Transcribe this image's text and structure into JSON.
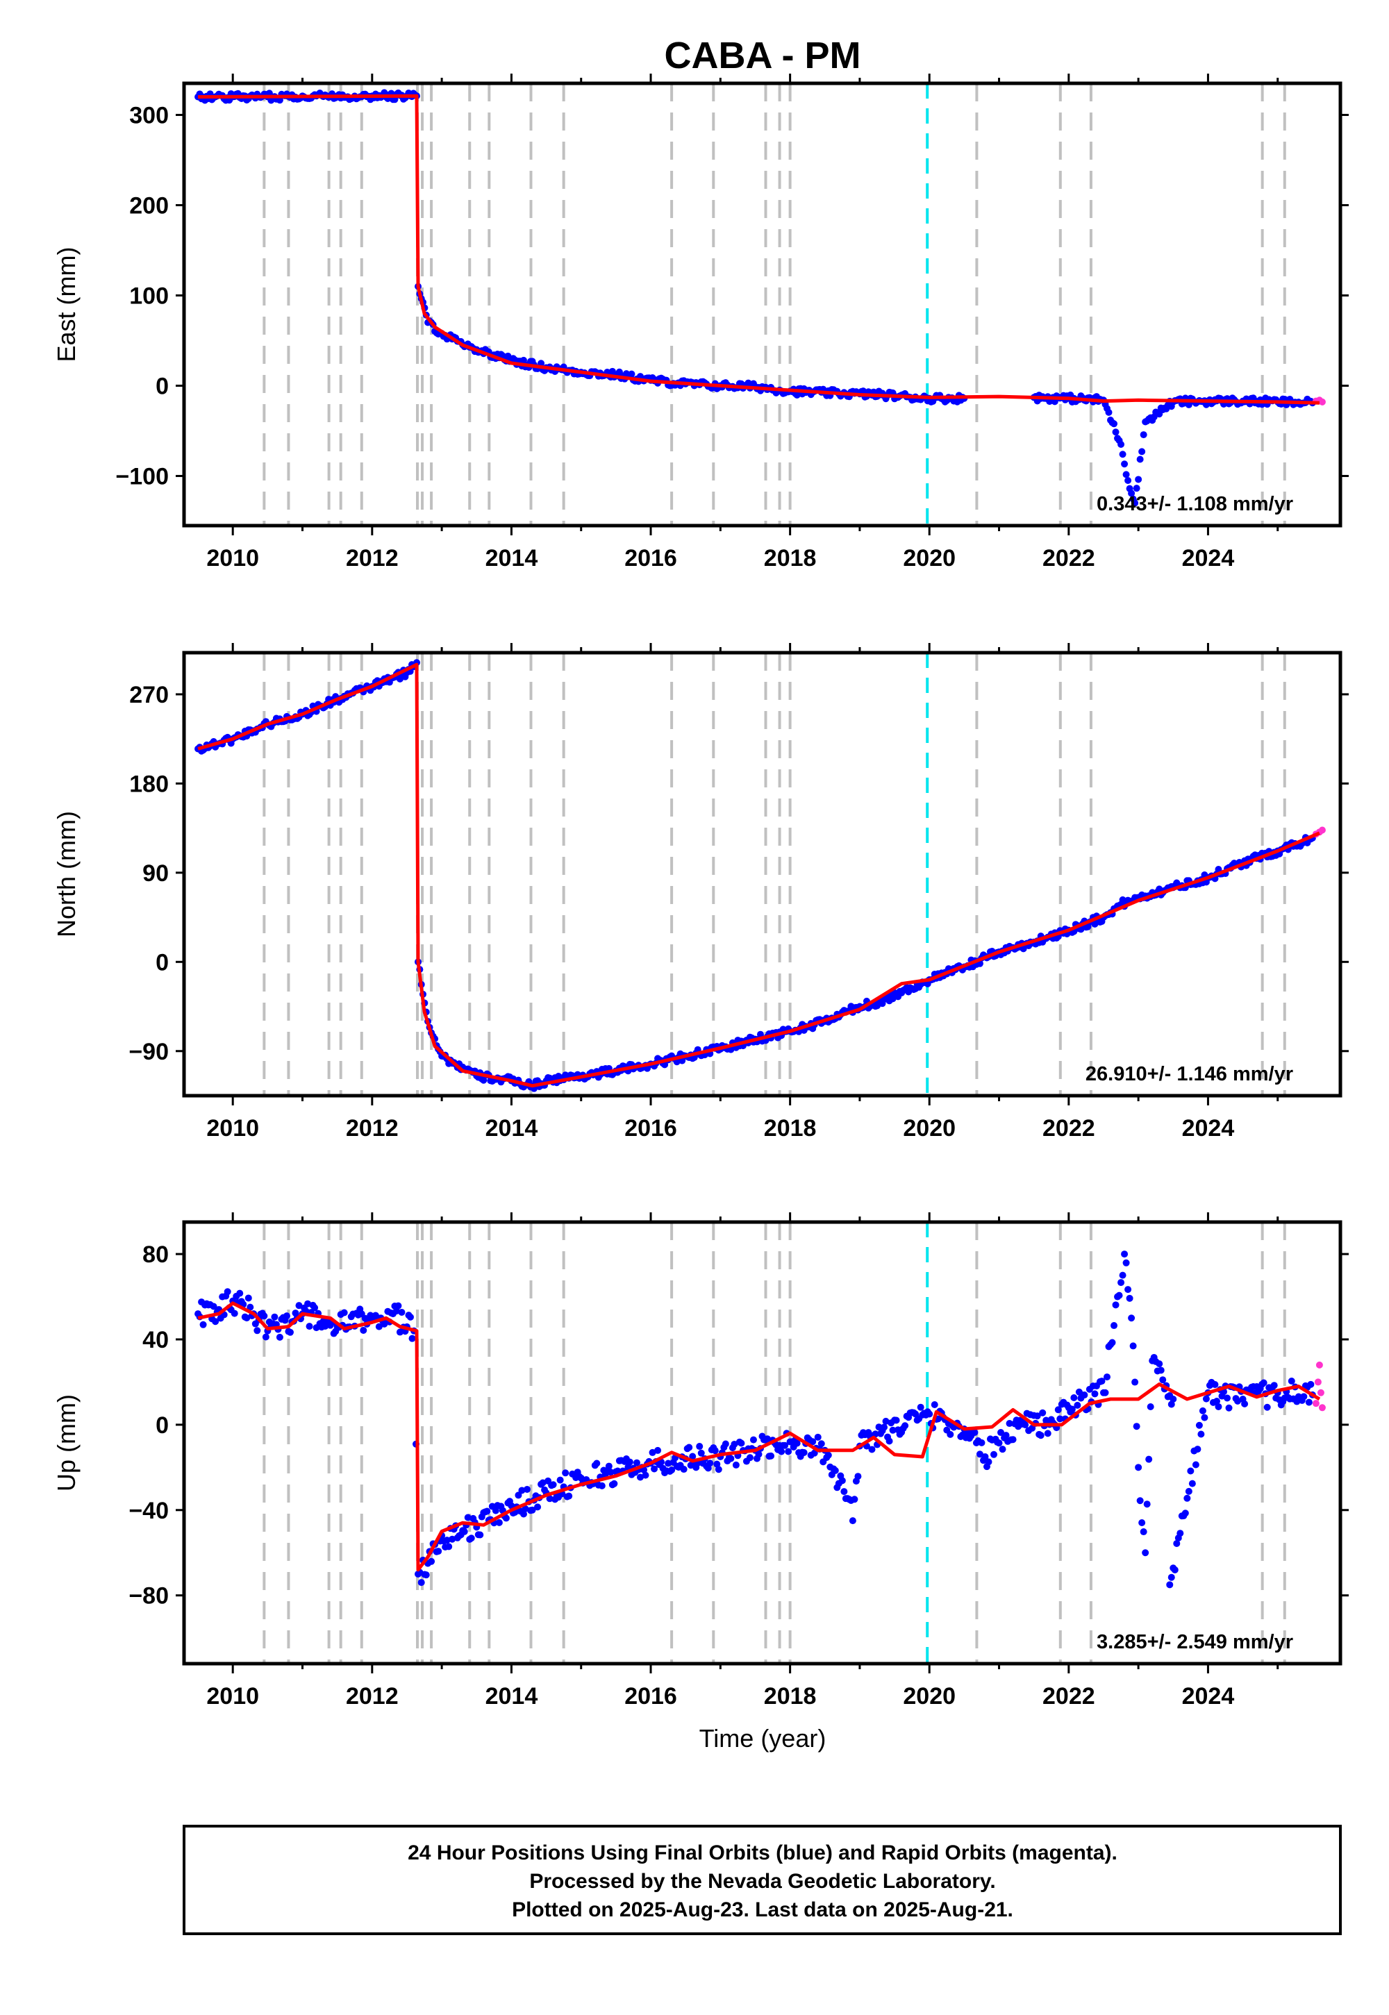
{
  "figure": {
    "title": "CABA - PM",
    "xlabel": "Time (year)",
    "footer": [
      "24 Hour Positions Using Final Orbits (blue) and Rapid Orbits (magenta).",
      "Processed by the Nevada Geodetic Laboratory.",
      "Plotted on 2025-Aug-23. Last data on 2025-Aug-21."
    ],
    "colors": {
      "final_orbits": "#0000ff",
      "rapid_orbits": "#ff33cc",
      "model_fit": "#ff0000",
      "event_lines": "#c0c0c0",
      "reference_line": "#00e5ee",
      "frame": "#000000"
    }
  },
  "chart_data": [
    {
      "type": "scatter",
      "title": "CABA - PM",
      "ylabel": "East (mm)",
      "xlim": [
        2009.3,
        2025.9
      ],
      "ylim": [
        -155,
        335
      ],
      "x_ticks": [
        2010,
        2012,
        2014,
        2016,
        2018,
        2020,
        2022,
        2024
      ],
      "y_ticks": [
        -100,
        0,
        100,
        200,
        300
      ],
      "y_tick_labels": [
        "−100",
        "0",
        "100",
        "200",
        "300"
      ],
      "rate": "0.343+/- 1.108 mm/yr",
      "event_lines": [
        2010.45,
        2010.8,
        2011.38,
        2011.55,
        2011.85,
        2012.65,
        2012.72,
        2012.85,
        2013.4,
        2013.68,
        2014.28,
        2014.75,
        2016.3,
        2016.9,
        2017.65,
        2017.85,
        2018.0,
        2020.68,
        2021.88,
        2022.32,
        2024.78,
        2025.1
      ],
      "reference_line": 2019.97,
      "series": [
        {
          "name": "Final Orbits",
          "data": [
            [
              2009.5,
              320
            ],
            [
              2010.0,
              320
            ],
            [
              2010.5,
              320
            ],
            [
              2011.0,
              321
            ],
            [
              2011.5,
              321
            ],
            [
              2012.0,
              321
            ],
            [
              2012.5,
              321
            ],
            [
              2012.64,
              321
            ],
            [
              2012.66,
              110
            ],
            [
              2012.8,
              70
            ],
            [
              2013.0,
              58
            ],
            [
              2013.5,
              40
            ],
            [
              2014.0,
              28
            ],
            [
              2014.5,
              20
            ],
            [
              2015.0,
              15
            ],
            [
              2015.5,
              12
            ],
            [
              2016.0,
              6
            ],
            [
              2016.5,
              2
            ],
            [
              2017.0,
              0
            ],
            [
              2017.5,
              -1
            ],
            [
              2018.0,
              -6
            ],
            [
              2018.5,
              -8
            ],
            [
              2019.0,
              -9
            ],
            [
              2019.3,
              -10
            ],
            [
              2020.0,
              -14
            ],
            [
              2020.5,
              -14
            ],
            [
              2021.5,
              -13
            ],
            [
              2022.0,
              -14
            ],
            [
              2022.5,
              -16
            ],
            [
              2022.75,
              -65
            ],
            [
              2022.85,
              -105
            ],
            [
              2022.95,
              -130
            ],
            [
              2023.1,
              -40
            ],
            [
              2023.5,
              -18
            ],
            [
              2024.0,
              -17
            ],
            [
              2024.5,
              -17
            ],
            [
              2025.0,
              -18
            ],
            [
              2025.5,
              -19
            ]
          ]
        },
        {
          "name": "Rapid Orbits",
          "data": [
            [
              2025.55,
              -17
            ],
            [
              2025.6,
              -16
            ],
            [
              2025.64,
              -18
            ]
          ]
        }
      ],
      "model": [
        [
          2009.5,
          320
        ],
        [
          2012.64,
          321
        ],
        [
          2012.66,
          110
        ],
        [
          2012.75,
          80
        ],
        [
          2012.9,
          65
        ],
        [
          2013.3,
          45
        ],
        [
          2014.0,
          25
        ],
        [
          2015.0,
          15
        ],
        [
          2016.0,
          5
        ],
        [
          2017.0,
          0
        ],
        [
          2018.0,
          -5
        ],
        [
          2019.0,
          -10
        ],
        [
          2020.0,
          -13
        ],
        [
          2021.0,
          -12
        ],
        [
          2022.0,
          -14
        ],
        [
          2022.5,
          -17
        ],
        [
          2023.0,
          -16
        ],
        [
          2024.0,
          -17
        ],
        [
          2025.0,
          -18
        ],
        [
          2025.6,
          -19
        ]
      ]
    },
    {
      "type": "scatter",
      "ylabel": "North (mm)",
      "xlim": [
        2009.3,
        2025.9
      ],
      "ylim": [
        -135,
        312
      ],
      "x_ticks": [
        2010,
        2012,
        2014,
        2016,
        2018,
        2020,
        2022,
        2024
      ],
      "y_ticks": [
        -90,
        0,
        90,
        180,
        270
      ],
      "y_tick_labels": [
        "−90",
        "0",
        "90",
        "180",
        "270"
      ],
      "rate": "26.910+/- 1.146 mm/yr",
      "event_lines": [
        2010.45,
        2010.8,
        2011.38,
        2011.55,
        2011.85,
        2012.65,
        2012.72,
        2012.85,
        2013.4,
        2013.68,
        2014.28,
        2014.75,
        2016.3,
        2016.9,
        2017.65,
        2017.85,
        2018.0,
        2020.68,
        2021.88,
        2022.32,
        2024.78,
        2025.1
      ],
      "reference_line": 2019.97,
      "series": [
        {
          "name": "Final Orbits",
          "data": [
            [
              2009.5,
              215
            ],
            [
              2010.0,
              225
            ],
            [
              2010.5,
              240
            ],
            [
              2011.0,
              250
            ],
            [
              2011.5,
              265
            ],
            [
              2012.0,
              278
            ],
            [
              2012.5,
              292
            ],
            [
              2012.64,
              302
            ],
            [
              2012.66,
              0
            ],
            [
              2012.8,
              -60
            ],
            [
              2013.0,
              -95
            ],
            [
              2013.5,
              -115
            ],
            [
              2014.0,
              -120
            ],
            [
              2014.3,
              -125
            ],
            [
              2014.5,
              -120
            ],
            [
              2015.0,
              -115
            ],
            [
              2015.5,
              -110
            ],
            [
              2016.0,
              -103
            ],
            [
              2016.5,
              -95
            ],
            [
              2017.0,
              -88
            ],
            [
              2017.5,
              -78
            ],
            [
              2018.0,
              -70
            ],
            [
              2018.5,
              -60
            ],
            [
              2019.0,
              -45
            ],
            [
              2019.3,
              -40
            ],
            [
              2020.0,
              -18
            ],
            [
              2020.5,
              -5
            ],
            [
              2021.0,
              10
            ],
            [
              2021.5,
              20
            ],
            [
              2022.0,
              32
            ],
            [
              2022.5,
              45
            ],
            [
              2022.75,
              58
            ],
            [
              2023.0,
              65
            ],
            [
              2023.5,
              75
            ],
            [
              2024.0,
              85
            ],
            [
              2024.5,
              100
            ],
            [
              2025.0,
              112
            ],
            [
              2025.5,
              125
            ]
          ]
        },
        {
          "name": "Rapid Orbits",
          "data": [
            [
              2025.55,
              129
            ],
            [
              2025.6,
              131
            ],
            [
              2025.64,
              133
            ]
          ]
        }
      ],
      "model": [
        [
          2009.5,
          215
        ],
        [
          2010.0,
          225
        ],
        [
          2010.5,
          240
        ],
        [
          2011.0,
          250
        ],
        [
          2011.5,
          265
        ],
        [
          2012.0,
          278
        ],
        [
          2012.64,
          300
        ],
        [
          2012.66,
          0
        ],
        [
          2012.75,
          -50
        ],
        [
          2012.9,
          -85
        ],
        [
          2013.3,
          -110
        ],
        [
          2014.0,
          -120
        ],
        [
          2014.3,
          -125
        ],
        [
          2015.0,
          -116
        ],
        [
          2016.0,
          -103
        ],
        [
          2017.0,
          -87
        ],
        [
          2018.0,
          -70
        ],
        [
          2019.0,
          -48
        ],
        [
          2019.6,
          -22
        ],
        [
          2020.0,
          -18
        ],
        [
          2021.0,
          10
        ],
        [
          2022.0,
          32
        ],
        [
          2023.0,
          62
        ],
        [
          2024.0,
          85
        ],
        [
          2025.0,
          112
        ],
        [
          2025.6,
          130
        ]
      ]
    },
    {
      "type": "scatter",
      "ylabel": "Up (mm)",
      "xlim": [
        2009.3,
        2025.9
      ],
      "ylim": [
        -112,
        95
      ],
      "x_ticks": [
        2010,
        2012,
        2014,
        2016,
        2018,
        2020,
        2022,
        2024
      ],
      "y_ticks": [
        -80,
        -40,
        0,
        40,
        80
      ],
      "y_tick_labels": [
        "−80",
        "−40",
        "0",
        "40",
        "80"
      ],
      "xlabel": "Time (year)",
      "rate": "3.285+/- 2.549 mm/yr",
      "event_lines": [
        2010.45,
        2010.8,
        2011.38,
        2011.55,
        2011.85,
        2012.65,
        2012.72,
        2012.85,
        2013.4,
        2013.68,
        2014.28,
        2014.75,
        2016.3,
        2016.9,
        2017.65,
        2017.85,
        2018.0,
        2020.68,
        2021.88,
        2022.32,
        2024.78,
        2025.1
      ],
      "reference_line": 2019.97,
      "series": [
        {
          "name": "Final Orbits",
          "data": [
            [
              2009.5,
              52
            ],
            [
              2009.8,
              54
            ],
            [
              2010.0,
              58
            ],
            [
              2010.3,
              52
            ],
            [
              2010.5,
              44
            ],
            [
              2011.0,
              52
            ],
            [
              2011.5,
              46
            ],
            [
              2012.0,
              50
            ],
            [
              2012.3,
              52
            ],
            [
              2012.6,
              44
            ],
            [
              2012.66,
              -70
            ],
            [
              2012.8,
              -65
            ],
            [
              2013.0,
              -52
            ],
            [
              2013.5,
              -48
            ],
            [
              2014.0,
              -38
            ],
            [
              2014.5,
              -32
            ],
            [
              2015.0,
              -25
            ],
            [
              2015.5,
              -22
            ],
            [
              2016.0,
              -18
            ],
            [
              2016.5,
              -16
            ],
            [
              2017.0,
              -15
            ],
            [
              2017.5,
              -12
            ],
            [
              2018.0,
              -8
            ],
            [
              2018.5,
              -12
            ],
            [
              2018.85,
              -35
            ],
            [
              2018.9,
              -45
            ],
            [
              2019.0,
              -10
            ],
            [
              2019.2,
              -5
            ],
            [
              2020.0,
              5
            ],
            [
              2020.5,
              -2
            ],
            [
              2020.8,
              -15
            ],
            [
              2021.3,
              2
            ],
            [
              2021.8,
              0
            ],
            [
              2022.0,
              8
            ],
            [
              2022.5,
              15
            ],
            [
              2022.7,
              60
            ],
            [
              2022.8,
              80
            ],
            [
              2022.9,
              50
            ],
            [
              2023.0,
              -20
            ],
            [
              2023.1,
              -60
            ],
            [
              2023.2,
              30
            ],
            [
              2023.5,
              12
            ],
            [
              2023.45,
              -75
            ],
            [
              2024.0,
              15
            ],
            [
              2024.5,
              12
            ],
            [
              2025.0,
              15
            ],
            [
              2025.5,
              14
            ]
          ]
        },
        {
          "name": "Rapid Orbits",
          "data": [
            [
              2025.55,
              10
            ],
            [
              2025.58,
              20
            ],
            [
              2025.6,
              28
            ],
            [
              2025.62,
              15
            ],
            [
              2025.64,
              8
            ]
          ]
        }
      ],
      "model": [
        [
          2009.5,
          50
        ],
        [
          2009.8,
          52
        ],
        [
          2010.0,
          57
        ],
        [
          2010.3,
          52
        ],
        [
          2010.5,
          45
        ],
        [
          2010.8,
          46
        ],
        [
          2011.0,
          52
        ],
        [
          2011.4,
          50
        ],
        [
          2011.6,
          45
        ],
        [
          2012.0,
          48
        ],
        [
          2012.2,
          50
        ],
        [
          2012.4,
          46
        ],
        [
          2012.64,
          44
        ],
        [
          2012.66,
          -68
        ],
        [
          2012.8,
          -62
        ],
        [
          2013.0,
          -50
        ],
        [
          2013.3,
          -46
        ],
        [
          2013.6,
          -47
        ],
        [
          2014.0,
          -40
        ],
        [
          2014.5,
          -33
        ],
        [
          2015.0,
          -28
        ],
        [
          2015.5,
          -24
        ],
        [
          2016.0,
          -18
        ],
        [
          2016.3,
          -13
        ],
        [
          2016.6,
          -17
        ],
        [
          2017.0,
          -14
        ],
        [
          2017.5,
          -12
        ],
        [
          2018.0,
          -4
        ],
        [
          2018.4,
          -12
        ],
        [
          2018.9,
          -12
        ],
        [
          2019.2,
          -6
        ],
        [
          2019.5,
          -14
        ],
        [
          2019.9,
          -15
        ],
        [
          2020.1,
          6
        ],
        [
          2020.5,
          -2
        ],
        [
          2020.9,
          -1
        ],
        [
          2021.2,
          7
        ],
        [
          2021.5,
          0
        ],
        [
          2021.9,
          0
        ],
        [
          2022.3,
          10
        ],
        [
          2022.6,
          12
        ],
        [
          2023.0,
          12
        ],
        [
          2023.3,
          19
        ],
        [
          2023.7,
          12
        ],
        [
          2024.0,
          15
        ],
        [
          2024.3,
          18
        ],
        [
          2024.7,
          13
        ],
        [
          2025.0,
          16
        ],
        [
          2025.3,
          18
        ],
        [
          2025.6,
          12
        ]
      ]
    }
  ]
}
